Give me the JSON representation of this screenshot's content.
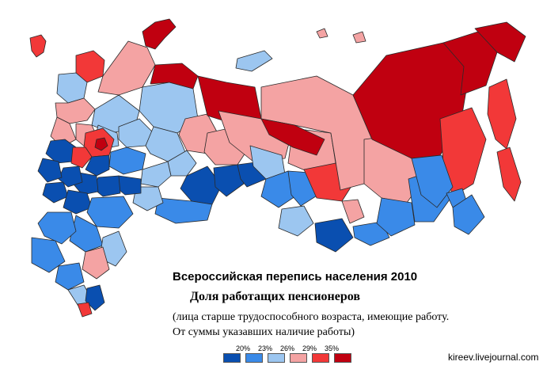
{
  "title": "Всероссийская перепись населения 2010",
  "subtitle": "Доля работащих пенсионеров",
  "note_line1": "(лица старше трудоспособного возраста, имеющие работу.",
  "note_line2": "От суммы указавших наличие работы)",
  "legend": {
    "thresholds": [
      "20%",
      "23%",
      "26%",
      "29%",
      "35%"
    ],
    "colors": [
      "#0a4fb0",
      "#3a8ae8",
      "#9cc6f0",
      "#f4a3a3",
      "#f23838",
      "#c00010"
    ]
  },
  "credit": "kireev.livejournal.com"
}
